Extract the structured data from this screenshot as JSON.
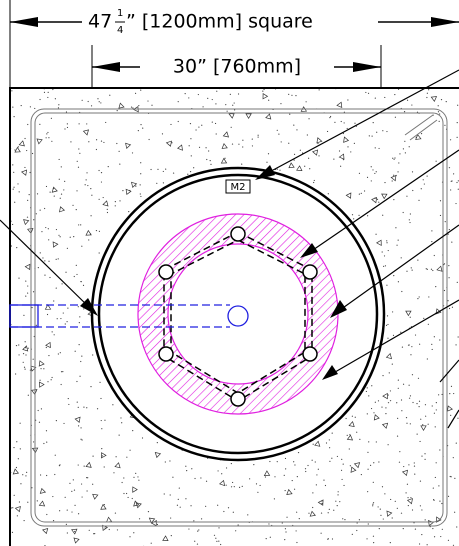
{
  "dimensions": {
    "overall": {
      "whole": "47",
      "numerator": "1",
      "denominator": "4",
      "rest": "” [1200mm] square"
    },
    "inner": "30” [760mm]"
  },
  "labels": {
    "mark": "M2"
  }
}
